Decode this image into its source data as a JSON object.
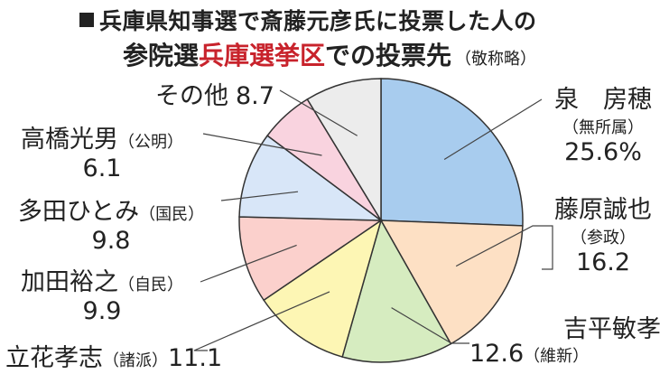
{
  "title": {
    "line1": "兵庫県知事選で斎藤元彦氏に投票した人の",
    "line2_pre": "参院選",
    "line2_highlight": "兵庫選挙区",
    "line2_post": "での投票先",
    "note": "（敬称略）"
  },
  "colors": {
    "highlight": "#c8232c"
  },
  "chart_data": {
    "type": "pie",
    "title": "兵庫県知事選で斎藤元彦氏に投票した人の参院選兵庫選挙区での投票先（敬称略）",
    "unit": "%",
    "slices": [
      {
        "name": "泉　房穂",
        "party": "（無所属）",
        "value": 25.6,
        "value_label": "25.6%",
        "color": "#a8ccee"
      },
      {
        "name": "藤原誠也",
        "party": "（参政）",
        "value": 16.2,
        "value_label": "16.2",
        "color": "#fde0c4"
      },
      {
        "name": "吉平敏孝",
        "party": "（維新）",
        "value": 12.6,
        "value_label": "12.6",
        "color": "#d6ecc0"
      },
      {
        "name": "立花孝志",
        "party": "（諸派）",
        "value": 11.1,
        "value_label": "11.1",
        "color": "#fdf6b4"
      },
      {
        "name": "加田裕之",
        "party": "（自民）",
        "value": 9.9,
        "value_label": "9.9",
        "color": "#fbd0cc"
      },
      {
        "name": "多田ひとみ",
        "party": "（国民）",
        "value": 9.8,
        "value_label": "9.8",
        "color": "#d8e6f8"
      },
      {
        "name": "高橋光男",
        "party": "（公明）",
        "value": 6.1,
        "value_label": "6.1",
        "color": "#f9d3df"
      },
      {
        "name": "その他",
        "party": "",
        "value": 8.7,
        "value_label": "8.7",
        "color": "#ececec"
      }
    ]
  }
}
